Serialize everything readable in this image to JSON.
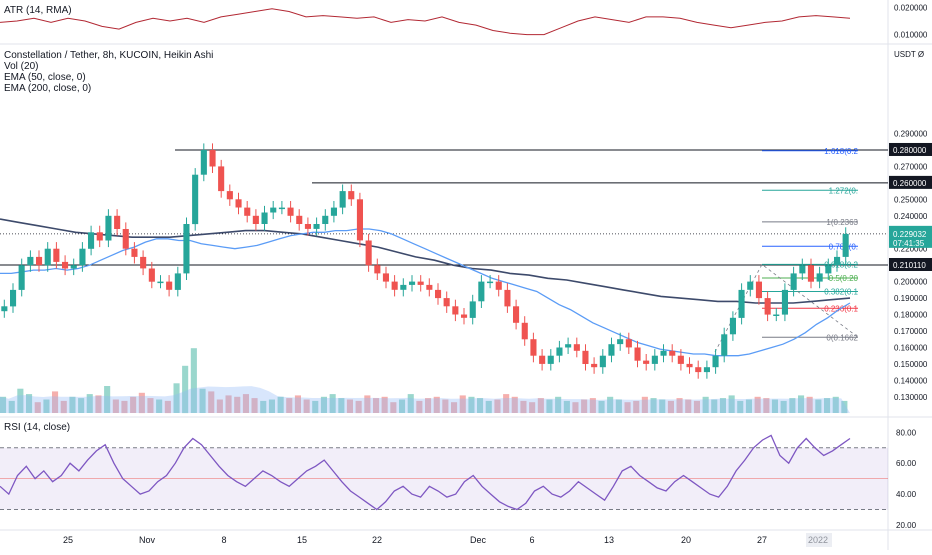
{
  "atr_panel": {
    "label": "ATR (14, RMA)",
    "ticks": [
      "0.020000",
      "0.010000"
    ]
  },
  "main_panel": {
    "title": "Constellation / Tether, 8h, KUCOIN, Heikin Ashi",
    "indicators": [
      "Vol (20)",
      "EMA (50, close, 0)",
      "EMA (200, close, 0)"
    ],
    "currency_label": "USDT Ø",
    "price_ticks": [
      "0.290000",
      "0.270000",
      "0.250000",
      "0.240000",
      "0.220000",
      "0.200000",
      "0.190000",
      "0.180000",
      "0.170000",
      "0.160000",
      "0.150000",
      "0.140000",
      "0.130000"
    ],
    "horizontal_levels": [
      {
        "value": "0.280000",
        "color": "#131722"
      },
      {
        "value": "0.260000",
        "color": "#131722"
      },
      {
        "value": "0.210110",
        "color": "#131722"
      }
    ],
    "current_price": {
      "value": "0.229032",
      "countdown": "07:41:35",
      "color": "#26a69a"
    },
    "fib_labels": [
      {
        "text": "1.618(0.2",
        "color": "#2962ff",
        "price": 0.2795
      },
      {
        "text": "1.272(0.",
        "color": "#26a69a",
        "price": 0.2555
      },
      {
        "text": "1(0.2363",
        "color": "#787b86",
        "price": 0.2363
      },
      {
        "text": "0.786(0.",
        "color": "#2962ff",
        "price": 0.2215
      },
      {
        "text": "0.618(0.2",
        "color": "#26a69a",
        "price": 0.2105
      },
      {
        "text": "0.5(0.20",
        "color": "#4caf50",
        "price": 0.2022
      },
      {
        "text": "0.382(0.1",
        "color": "#26a69a",
        "price": 0.194
      },
      {
        "text": "0.236(0.1",
        "color": "#f23645",
        "price": 0.1838
      },
      {
        "text": "0(0.1662",
        "color": "#787b86",
        "price": 0.1662
      }
    ]
  },
  "rsi_panel": {
    "label": "RSI (14, close)",
    "ticks": [
      "80.00",
      "60.00",
      "40.00",
      "20.00"
    ]
  },
  "x_axis": {
    "ticks": [
      "25",
      "Nov",
      "8",
      "15",
      "22",
      "Dec",
      "6",
      "13",
      "20",
      "27",
      "2022"
    ]
  },
  "chart_data": {
    "type": "candlestick",
    "title": "Constellation / Tether, 8h, KUCOIN, Heikin Ashi",
    "up_color": "#26a69a",
    "down_color": "#ef5350",
    "price_range": [
      0.122,
      0.297
    ],
    "close_series": [
      0.185,
      0.195,
      0.21,
      0.215,
      0.21,
      0.22,
      0.212,
      0.208,
      0.21,
      0.22,
      0.23,
      0.225,
      0.24,
      0.232,
      0.22,
      0.215,
      0.208,
      0.2,
      0.2,
      0.195,
      0.205,
      0.235,
      0.265,
      0.28,
      0.27,
      0.255,
      0.25,
      0.245,
      0.24,
      0.235,
      0.242,
      0.245,
      0.245,
      0.24,
      0.235,
      0.232,
      0.235,
      0.24,
      0.245,
      0.255,
      0.25,
      0.225,
      0.21,
      0.205,
      0.2,
      0.195,
      0.198,
      0.2,
      0.198,
      0.195,
      0.19,
      0.185,
      0.18,
      0.178,
      0.188,
      0.2,
      0.2,
      0.195,
      0.185,
      0.175,
      0.165,
      0.155,
      0.15,
      0.155,
      0.16,
      0.162,
      0.158,
      0.15,
      0.148,
      0.155,
      0.162,
      0.165,
      0.16,
      0.152,
      0.15,
      0.155,
      0.158,
      0.155,
      0.15,
      0.148,
      0.145,
      0.148,
      0.155,
      0.168,
      0.178,
      0.195,
      0.2,
      0.19,
      0.18,
      0.18,
      0.195,
      0.205,
      0.21,
      0.2,
      0.205,
      0.21,
      0.215,
      0.229
    ],
    "ema50": [
      0.205,
      0.205,
      0.206,
      0.207,
      0.207,
      0.208,
      0.207,
      0.208,
      0.21,
      0.213,
      0.216,
      0.219,
      0.221,
      0.224,
      0.226,
      0.226,
      0.225,
      0.225,
      0.223,
      0.222,
      0.221,
      0.22,
      0.221,
      0.222,
      0.224,
      0.226,
      0.228,
      0.229,
      0.23,
      0.23,
      0.231,
      0.231,
      0.232,
      0.232,
      0.231,
      0.229,
      0.226,
      0.223,
      0.22,
      0.217,
      0.214,
      0.211,
      0.208,
      0.205,
      0.202,
      0.2,
      0.198,
      0.196,
      0.194,
      0.19,
      0.186,
      0.183,
      0.179,
      0.175,
      0.172,
      0.169,
      0.166,
      0.163,
      0.161,
      0.159,
      0.158,
      0.157,
      0.156,
      0.156,
      0.155,
      0.155,
      0.155,
      0.156,
      0.158,
      0.16,
      0.162,
      0.165,
      0.169,
      0.174,
      0.178,
      0.183,
      0.187
    ],
    "ema200": [
      0.238,
      0.236,
      0.234,
      0.232,
      0.23,
      0.229,
      0.228,
      0.227,
      0.227,
      0.227,
      0.228,
      0.229,
      0.23,
      0.231,
      0.231,
      0.23,
      0.229,
      0.227,
      0.225,
      0.223,
      0.221,
      0.218,
      0.215,
      0.213,
      0.21,
      0.208,
      0.207,
      0.205,
      0.204,
      0.202,
      0.201,
      0.199,
      0.197,
      0.195,
      0.193,
      0.191,
      0.19,
      0.189,
      0.188,
      0.188,
      0.187,
      0.187,
      0.187,
      0.188,
      0.189,
      0.19
    ],
    "atr_series": [
      0.0145,
      0.015,
      0.016,
      0.0145,
      0.016,
      0.015,
      0.013,
      0.012,
      0.0145,
      0.016,
      0.015,
      0.016,
      0.0145,
      0.0165,
      0.0175,
      0.0185,
      0.0195,
      0.0185,
      0.0165,
      0.017,
      0.0165,
      0.016,
      0.0165,
      0.0145,
      0.0155,
      0.015,
      0.0165,
      0.0145,
      0.0135,
      0.0115,
      0.0105,
      0.01,
      0.01,
      0.0125,
      0.015,
      0.0165,
      0.0155,
      0.0145,
      0.0165,
      0.0165,
      0.016,
      0.0145,
      0.0135,
      0.0125,
      0.0135,
      0.0145,
      0.015,
      0.0165,
      0.017,
      0.0165,
      0.016
    ],
    "volume_series": [
      12,
      9,
      18,
      14,
      8,
      10,
      16,
      9,
      12,
      11,
      14,
      13,
      20,
      10,
      9,
      12,
      15,
      11,
      10,
      9,
      22,
      35,
      48,
      18,
      16,
      10,
      13,
      12,
      14,
      11,
      9,
      10,
      12,
      11,
      13,
      10,
      9,
      12,
      14,
      11,
      10,
      9,
      13,
      11,
      12,
      8,
      10,
      14,
      9,
      11,
      12,
      10,
      8,
      13,
      12,
      11,
      9,
      10,
      14,
      12,
      9,
      8,
      11,
      10,
      12,
      9,
      8,
      10,
      11,
      9,
      12,
      10,
      8,
      9,
      12,
      11,
      10,
      9,
      11,
      10,
      9,
      12,
      10,
      11,
      13,
      9,
      10,
      12,
      11,
      10,
      9,
      11,
      13,
      12,
      10,
      11,
      12,
      9
    ],
    "rsi_series": [
      45,
      40,
      52,
      58,
      50,
      55,
      48,
      52,
      60,
      55,
      62,
      68,
      72,
      60,
      50,
      45,
      40,
      42,
      48,
      52,
      60,
      70,
      76,
      72,
      65,
      58,
      52,
      48,
      45,
      50,
      55,
      52,
      48,
      45,
      50,
      55,
      58,
      62,
      55,
      48,
      42,
      38,
      34,
      30,
      35,
      42,
      45,
      40,
      38,
      45,
      42,
      38,
      40,
      48,
      52,
      45,
      40,
      35,
      32,
      30,
      34,
      42,
      45,
      40,
      38,
      42,
      48,
      44,
      40,
      36,
      45,
      55,
      58,
      52,
      48,
      44,
      42,
      48,
      52,
      48,
      44,
      40,
      38,
      45,
      55,
      62,
      70,
      75,
      78,
      65,
      60,
      70,
      76,
      70,
      65,
      68,
      72,
      76
    ],
    "rsi_levels": {
      "upper": 70,
      "middle": 50,
      "lower": 30
    },
    "rsi_range": [
      18,
      88
    ]
  }
}
